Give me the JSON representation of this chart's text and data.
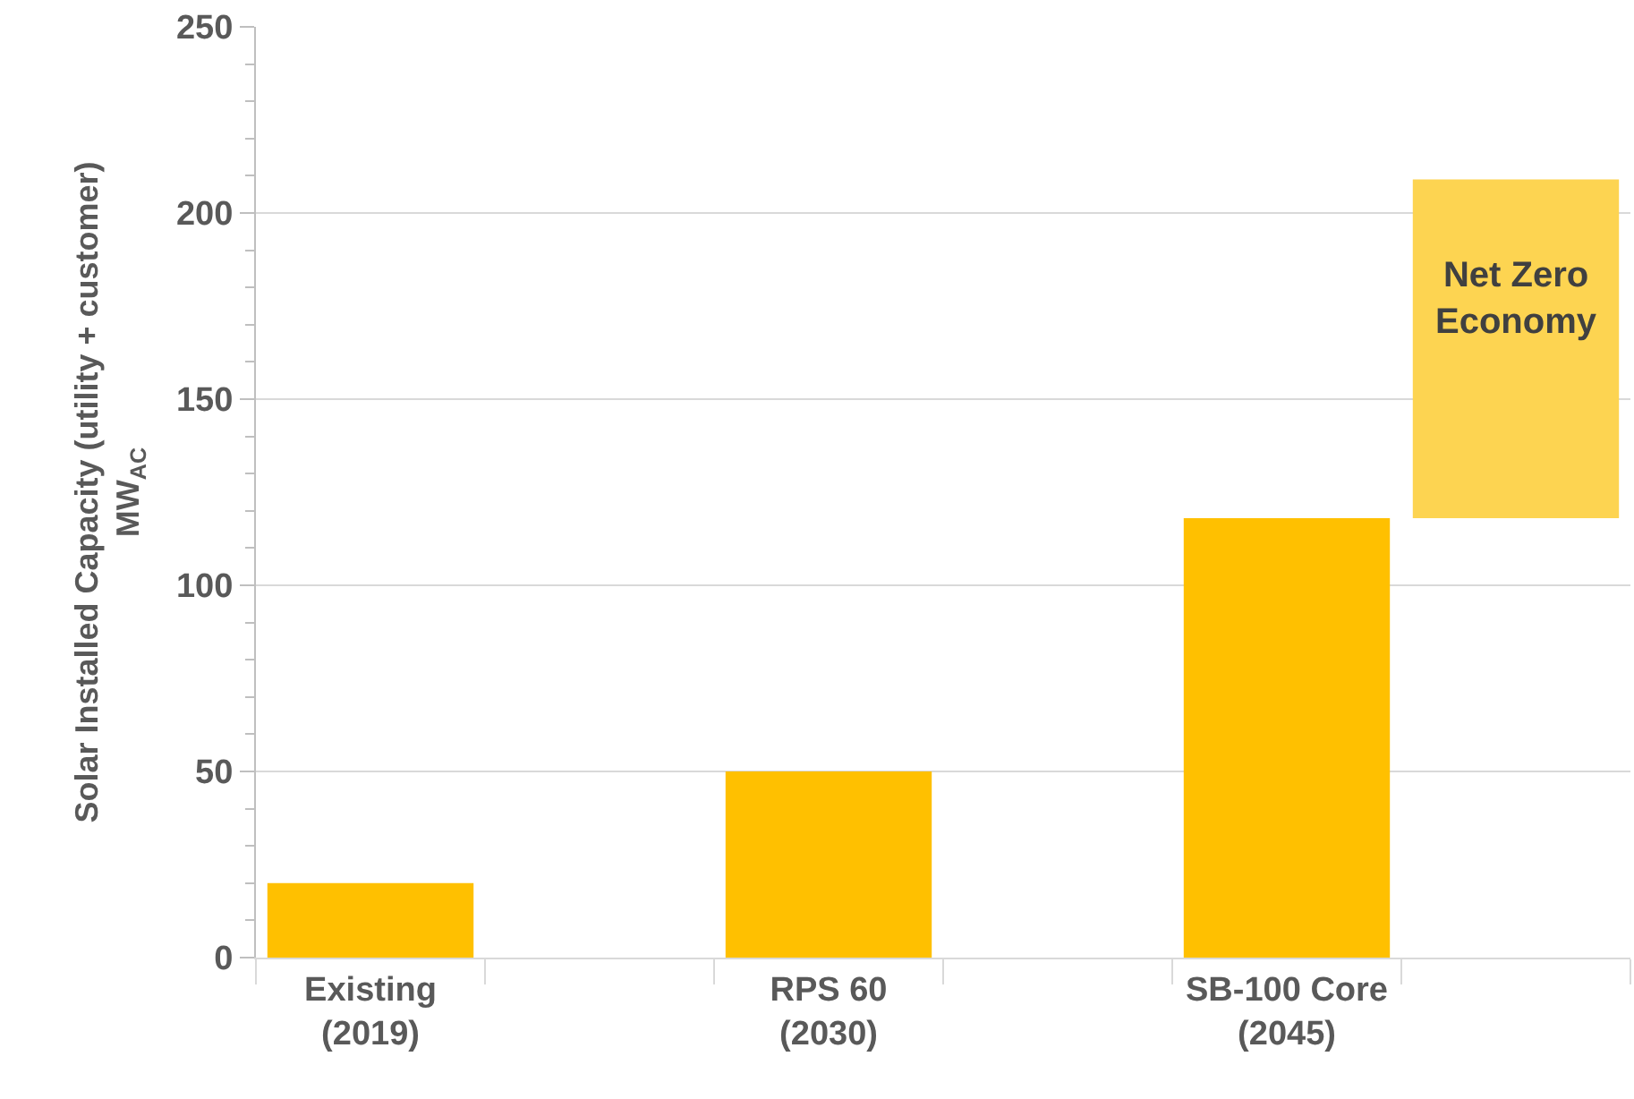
{
  "chart_data": {
    "type": "bar",
    "categories": [
      "Existing\n(2019)",
      null,
      "RPS 60\n(2030)",
      null,
      "SB-100 Core\n(2045)",
      null
    ],
    "values": [
      20,
      null,
      50,
      null,
      118,
      91
    ],
    "base": [
      null,
      null,
      null,
      null,
      null,
      118
    ],
    "colors": [
      "#ffc000",
      "#ffc000",
      "#ffc000",
      "#ffc000",
      "#ffc000",
      "#fdd451"
    ],
    "ylabel": "Solar Installed Capacity (utility + customer)\nMW$_{AC}$",
    "annotations": [
      "Net Zero\nEconomy"
    ],
    "ylim": [
      0,
      250
    ],
    "yticks": [
      0,
      {
        "value": 10,
        "label": null
      },
      {
        "value": 20,
        "label": null
      },
      {
        "value": 30,
        "label": null
      },
      {
        "value": 40,
        "label": null
      },
      50,
      {
        "value": 60,
        "label": null
      },
      {
        "value": 70,
        "label": null
      },
      {
        "value": 80,
        "label": null
      },
      {
        "value": 90,
        "label": null
      },
      100,
      {
        "value": 110,
        "label": null
      },
      {
        "value": 120,
        "label": null
      },
      {
        "value": 130,
        "label": null
      },
      {
        "value": 140,
        "label": null
      },
      150,
      {
        "value": 160,
        "label": null
      },
      {
        "value": 170,
        "label": null
      },
      {
        "value": 180,
        "label": null
      },
      {
        "value": 190,
        "label": null
      },
      200,
      {
        "value": 210,
        "label": null
      },
      {
        "value": 220,
        "label": null
      },
      {
        "value": 230,
        "label": null
      },
      {
        "value": 240,
        "label": null
      },
      250
    ],
    "grid": "y"
  }
}
